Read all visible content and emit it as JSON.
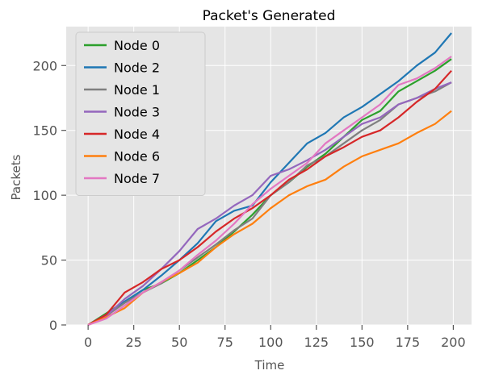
{
  "chart_data": {
    "type": "line",
    "title": "Packet's Generated",
    "xlabel": "Time",
    "ylabel": "Packets",
    "xlim": [
      -12,
      210
    ],
    "ylim": [
      0,
      230
    ],
    "xticks": [
      0,
      25,
      50,
      75,
      100,
      125,
      150,
      175,
      200
    ],
    "yticks": [
      0,
      50,
      100,
      150,
      200
    ],
    "grid": true,
    "legend_position": "top-left",
    "background": "#e5e5e5",
    "series": [
      {
        "name": "Node 0",
        "color": "#2ca02c",
        "x": [
          0,
          10,
          20,
          30,
          40,
          50,
          60,
          70,
          80,
          90,
          100,
          110,
          120,
          130,
          140,
          150,
          160,
          170,
          180,
          190,
          199
        ],
        "y": [
          0,
          9,
          18,
          27,
          32,
          40,
          50,
          60,
          72,
          85,
          100,
          110,
          122,
          132,
          145,
          158,
          165,
          180,
          188,
          196,
          205
        ]
      },
      {
        "name": "Node 2",
        "color": "#1f77b4",
        "x": [
          0,
          10,
          20,
          30,
          40,
          50,
          60,
          70,
          80,
          90,
          100,
          110,
          120,
          130,
          140,
          150,
          160,
          170,
          180,
          190,
          199
        ],
        "y": [
          0,
          8,
          18,
          27,
          38,
          50,
          63,
          80,
          88,
          92,
          110,
          125,
          140,
          148,
          160,
          168,
          178,
          188,
          200,
          210,
          225
        ]
      },
      {
        "name": "Node 1",
        "color": "#7f7f7f",
        "x": [
          0,
          10,
          20,
          30,
          40,
          50,
          60,
          70,
          80,
          90,
          100,
          110,
          120,
          130,
          140,
          150,
          160,
          170,
          180,
          190,
          199
        ],
        "y": [
          0,
          7,
          17,
          25,
          32,
          42,
          52,
          62,
          73,
          82,
          100,
          110,
          123,
          130,
          140,
          150,
          158,
          170,
          175,
          180,
          187
        ]
      },
      {
        "name": "Node 3",
        "color": "#9467bd",
        "x": [
          0,
          10,
          20,
          30,
          40,
          50,
          60,
          70,
          80,
          90,
          100,
          110,
          120,
          130,
          140,
          150,
          160,
          170,
          180,
          190,
          199
        ],
        "y": [
          0,
          7,
          20,
          30,
          43,
          57,
          74,
          82,
          92,
          100,
          115,
          120,
          127,
          135,
          145,
          155,
          160,
          170,
          175,
          182,
          187
        ]
      },
      {
        "name": "Node 4",
        "color": "#d62728",
        "x": [
          0,
          10,
          20,
          30,
          40,
          50,
          60,
          70,
          80,
          90,
          100,
          110,
          120,
          130,
          140,
          150,
          160,
          170,
          180,
          190,
          199
        ],
        "y": [
          0,
          8,
          25,
          33,
          43,
          50,
          60,
          72,
          82,
          90,
          100,
          112,
          120,
          130,
          137,
          145,
          150,
          160,
          172,
          182,
          196
        ]
      },
      {
        "name": "Node 6",
        "color": "#ff7f0e",
        "x": [
          0,
          10,
          20,
          30,
          40,
          50,
          60,
          70,
          80,
          90,
          100,
          110,
          120,
          130,
          140,
          150,
          160,
          170,
          180,
          190,
          199
        ],
        "y": [
          0,
          6,
          13,
          25,
          33,
          40,
          48,
          60,
          70,
          78,
          90,
          100,
          107,
          112,
          122,
          130,
          135,
          140,
          148,
          155,
          165
        ]
      },
      {
        "name": "Node 7",
        "color": "#e377c2",
        "x": [
          0,
          10,
          20,
          30,
          40,
          50,
          60,
          70,
          80,
          90,
          100,
          110,
          120,
          130,
          140,
          150,
          160,
          170,
          180,
          190,
          199
        ],
        "y": [
          0,
          5,
          15,
          25,
          33,
          42,
          54,
          65,
          78,
          93,
          105,
          115,
          125,
          140,
          150,
          160,
          170,
          185,
          190,
          198,
          207
        ]
      }
    ]
  }
}
